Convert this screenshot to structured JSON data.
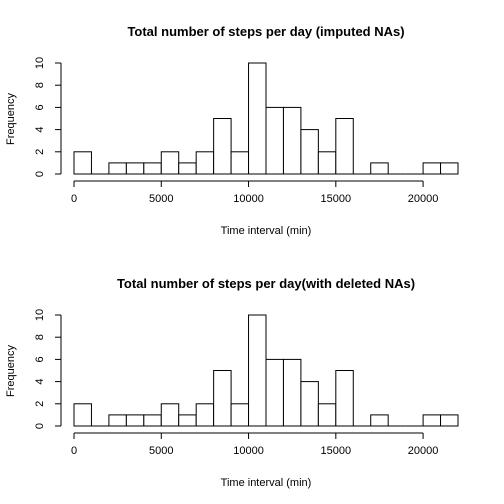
{
  "chart_data": [
    {
      "type": "bar",
      "title": "Total number of steps per day (imputed NAs)",
      "xlabel": "Time interval (min)",
      "ylabel": "Frequency",
      "x_ticks": [
        0,
        5000,
        10000,
        15000,
        20000
      ],
      "y_ticks": [
        0,
        2,
        4,
        6,
        8,
        10
      ],
      "xlim": [
        0,
        22000
      ],
      "ylim": [
        0,
        10
      ],
      "bin_width": 1000,
      "bin_edges_start": 0,
      "values": [
        2,
        0,
        1,
        1,
        1,
        2,
        1,
        2,
        5,
        2,
        10,
        6,
        6,
        4,
        2,
        5,
        0,
        1,
        0,
        0,
        1,
        1
      ]
    },
    {
      "type": "bar",
      "title": "Total number of steps per day(with deleted NAs)",
      "xlabel": "Time interval (min)",
      "ylabel": "Frequency",
      "x_ticks": [
        0,
        5000,
        10000,
        15000,
        20000
      ],
      "y_ticks": [
        0,
        2,
        4,
        6,
        8,
        10
      ],
      "xlim": [
        0,
        22000
      ],
      "ylim": [
        0,
        10
      ],
      "bin_width": 1000,
      "bin_edges_start": 0,
      "values": [
        2,
        0,
        1,
        1,
        1,
        2,
        1,
        2,
        5,
        2,
        10,
        6,
        6,
        4,
        2,
        5,
        0,
        1,
        0,
        0,
        1,
        1
      ]
    }
  ]
}
